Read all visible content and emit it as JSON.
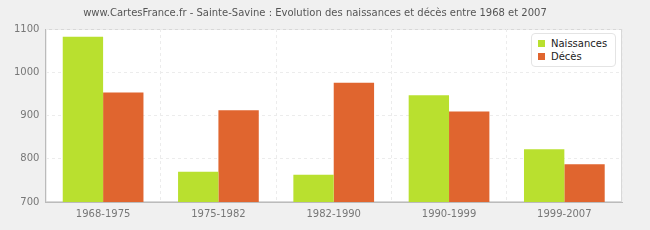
{
  "chart_data": {
    "type": "bar",
    "title": "www.CartesFrance.fr - Sainte-Savine : Evolution des naissances et décès entre 1968 et 2007",
    "categories": [
      "1968-1975",
      "1975-1982",
      "1982-1990",
      "1990-1999",
      "1999-2007"
    ],
    "series": [
      {
        "name": "Naissances",
        "color": "#b9e02f",
        "values": [
          1082,
          770,
          763,
          947,
          822
        ]
      },
      {
        "name": "Décès",
        "color": "#e0652f",
        "values": [
          953,
          912,
          976,
          909,
          787
        ]
      }
    ],
    "ylim": [
      700,
      1100
    ],
    "yticks": [
      700,
      800,
      900,
      1000,
      1100
    ],
    "grid": true,
    "legend": "top-right"
  }
}
